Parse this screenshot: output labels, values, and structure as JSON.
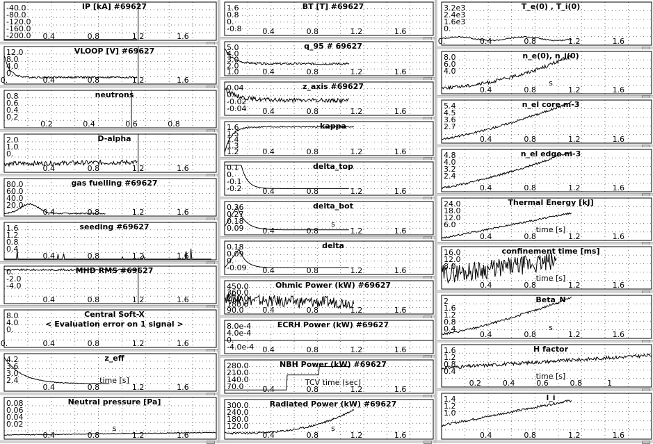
{
  "colors": {
    "line": "#000000",
    "grid": "#707070",
    "frame": "#000000",
    "panel_sep": "#d4d4d4"
  },
  "chart_data": [
    {
      "id": "ip",
      "type": "line",
      "title": "IP [kA] #69627",
      "yticks": [
        "-40.0",
        "-80.0",
        "-120.0",
        "-160.0",
        "-200.0"
      ],
      "xticks": [
        "0.4",
        "0.8",
        "1.2",
        "1.6"
      ],
      "xrange": [
        0,
        1.9
      ],
      "ylim": [
        -210,
        0
      ],
      "trace": "flat",
      "shot_marker": 1.2,
      "annotation": ""
    },
    {
      "id": "vloop",
      "type": "line",
      "title": "VLOOP [V] #69627",
      "yticks": [
        "12.0",
        "8.0",
        "4.0",
        "0."
      ],
      "xticks": [
        "0.",
        "0.4",
        "0.8",
        "1.2",
        "1.6"
      ],
      "xrange": [
        0,
        1.9
      ],
      "ylim": [
        -1,
        13
      ],
      "trace": "decay_spike",
      "shot_marker": 1.2,
      "annotation": ""
    },
    {
      "id": "neutrons",
      "type": "line",
      "title": "neutrons",
      "yticks": [
        "0.8",
        "0.6",
        "0.4",
        "0.2"
      ],
      "xticks": [
        "0.2",
        "0.4",
        "0.6",
        "0.8"
      ],
      "xrange": [
        0,
        1
      ],
      "ylim": [
        0,
        1
      ],
      "trace": "none",
      "shot_marker": 0.6,
      "annotation": ""
    },
    {
      "id": "dalpha",
      "type": "line",
      "title": "D-alpha",
      "yticks": [
        "2.0",
        "1.0",
        "0."
      ],
      "xticks": [
        "0.4",
        "0.8",
        "1.2",
        "1.6"
      ],
      "xrange": [
        0,
        1.9
      ],
      "ylim": [
        0,
        2.6
      ],
      "trace": "noisy_low",
      "shot_marker": 1.2,
      "annotation": ""
    },
    {
      "id": "gas",
      "type": "line",
      "title": "gas fuelling #69627",
      "yticks": [
        "80.0",
        "60.0",
        "40.0",
        "20.0"
      ],
      "xticks": [
        "0.4",
        "0.8",
        "1.2",
        "1.6"
      ],
      "xrange": [
        0,
        1.9
      ],
      "ylim": [
        0,
        90
      ],
      "trace": "early_bump",
      "shot_marker": null,
      "annotation": ""
    },
    {
      "id": "seeding",
      "type": "line",
      "title": "seeding #69627",
      "yticks": [
        "1.6",
        "1.2",
        "0.8",
        "0.4"
      ],
      "xticks": [
        "0.4",
        "0.8",
        "1.2",
        "1.6"
      ],
      "xrange": [
        0,
        1.9
      ],
      "ylim": [
        0,
        2
      ],
      "trace": "spikes",
      "shot_marker": null,
      "annotation": ""
    },
    {
      "id": "mhd",
      "type": "line",
      "title": "MHD RMS #69627",
      "yticks": [
        "0.",
        "-2.0",
        "-4.0"
      ],
      "xticks": [
        "0.4",
        "0.8",
        "1.2",
        "1.6"
      ],
      "xrange": [
        0,
        1.9
      ],
      "ylim": [
        -5,
        0.5
      ],
      "trace": "top_band",
      "shot_marker": 1.2,
      "annotation": ""
    },
    {
      "id": "softx",
      "type": "line",
      "title": "Central Soft-X",
      "yticks": [
        "8.0",
        "4.0",
        "0."
      ],
      "xticks": [
        "0.",
        "0.4",
        "0.8",
        "1.2",
        "1.6"
      ],
      "xrange": [
        0,
        1.9
      ],
      "ylim": [
        0,
        10
      ],
      "trace": "none",
      "shot_marker": null,
      "annotation": "< Evaluation error on 1 signal >"
    },
    {
      "id": "zeff",
      "type": "line",
      "title": "z_eff",
      "yticks": [
        "4.2",
        "3.6",
        "3.0",
        "2.4"
      ],
      "xticks": [
        "0.4",
        "0.8",
        "1.2",
        "1.6"
      ],
      "xrange": [
        0,
        1.9
      ],
      "ylim": [
        2,
        4.6
      ],
      "trace": "decay",
      "shot_marker": null,
      "annotation": "time [s]"
    },
    {
      "id": "npress",
      "type": "line",
      "title": "Neutral pressure [Pa]",
      "yticks": [
        "0.08",
        "0.06",
        "0.04",
        "0.02"
      ],
      "xticks": [
        "0.4",
        "0.8",
        "1.2",
        "1.6"
      ],
      "xrange": [
        0,
        1.9
      ],
      "ylim": [
        0.01,
        0.095
      ],
      "trace": "low_flat",
      "shot_marker": null,
      "annotation": "s"
    },
    {
      "id": "bt",
      "type": "line",
      "title": "BT [T] #69627",
      "yticks": [
        "1.6",
        "0.8",
        "0.",
        "-0.8"
      ],
      "xticks": [
        "0.4",
        "0.8",
        "1.2",
        "1.6"
      ],
      "xrange": [
        0,
        1.9
      ],
      "ylim": [
        -1,
        2
      ],
      "trace": "none",
      "shot_marker": null,
      "annotation": ""
    },
    {
      "id": "q95",
      "type": "line",
      "title": "q_95 # 69627",
      "yticks": [
        "5.0",
        "4.0",
        "3.0",
        "2.0",
        "1.0"
      ],
      "xticks": [
        "0.4",
        "0.8",
        "1.2",
        "1.6"
      ],
      "xrange": [
        0,
        1.9
      ],
      "ylim": [
        0.5,
        6
      ],
      "trace": "q95",
      "shot_marker": null,
      "annotation": ""
    },
    {
      "id": "zaxis",
      "type": "line",
      "title": "z_axis #69627",
      "yticks": [
        "0.04",
        "0.",
        "-0.02",
        "-0.04"
      ],
      "xticks": [
        "0.4",
        "0.8",
        "1.2",
        "1.6"
      ],
      "xrange": [
        0,
        1.9
      ],
      "ylim": [
        -0.05,
        0.05
      ],
      "trace": "zaxis",
      "shot_marker": null,
      "annotation": ""
    },
    {
      "id": "kappa",
      "type": "line",
      "title": "kappa",
      "yticks": [
        "1.6",
        "1.5",
        "1.4",
        "1.3",
        "1.2"
      ],
      "xticks": [
        "0.4",
        "0.8",
        "1.2",
        "1.6"
      ],
      "xrange": [
        0,
        1.9
      ],
      "ylim": [
        1.1,
        1.8
      ],
      "trace": "kappa",
      "shot_marker": null,
      "annotation": ""
    },
    {
      "id": "deltatop",
      "type": "line",
      "title": "delta_top",
      "yticks": [
        "0.1",
        "0.",
        "-0.1",
        "-0.2"
      ],
      "xticks": [
        "0.4",
        "0.8",
        "1.2",
        "1.6"
      ],
      "xrange": [
        0,
        1.9
      ],
      "ylim": [
        -0.3,
        0.2
      ],
      "trace": "dtop",
      "shot_marker": null,
      "annotation": ""
    },
    {
      "id": "deltabot",
      "type": "line",
      "title": "delta_bot",
      "yticks": [
        "0.36",
        "0.27",
        "0.18",
        "0.09"
      ],
      "xticks": [
        "0.4",
        "0.8",
        "1.2",
        "1.6"
      ],
      "xrange": [
        0,
        1.9
      ],
      "ylim": [
        0,
        0.42
      ],
      "trace": "dbot",
      "shot_marker": null,
      "annotation": "s"
    },
    {
      "id": "delta",
      "type": "line",
      "title": "delta",
      "yticks": [
        "0.18",
        "0.09",
        "0.",
        "-0.09"
      ],
      "xticks": [
        "0.4",
        "0.8",
        "1.2",
        "1.6"
      ],
      "xrange": [
        0,
        1.9
      ],
      "ylim": [
        -0.15,
        0.25
      ],
      "trace": "delta",
      "shot_marker": null,
      "annotation": ""
    },
    {
      "id": "ohmic",
      "type": "line",
      "title": "Ohmic Power (kW) #69627",
      "yticks": [
        "450.0",
        "360.0",
        "270.0",
        "180.0",
        "90.0"
      ],
      "xticks": [
        "0.4",
        "0.8",
        "1.2",
        "1.6"
      ],
      "xrange": [
        0,
        1.9
      ],
      "ylim": [
        0,
        480
      ],
      "trace": "noisy_mid",
      "shot_marker": null,
      "annotation": ""
    },
    {
      "id": "ecrh",
      "type": "line",
      "title": "ECRH Power (kW) #69627",
      "yticks": [
        "8.0e-4",
        "4.0e-4",
        "0.",
        "-4.0e-4"
      ],
      "xticks": [
        "0.4",
        "0.8",
        "1.2",
        "1.6"
      ],
      "xrange": [
        0,
        1.9
      ],
      "ylim": [
        -0.0006,
        0.0009
      ],
      "trace": "zero",
      "shot_marker": null,
      "annotation": ""
    },
    {
      "id": "nbh",
      "type": "line",
      "title": "NBH Power (kW) #69627",
      "yticks": [
        "280.0",
        "210.0",
        "140.0",
        "70.0"
      ],
      "xticks": [
        "0.4",
        "0.8",
        "1.2",
        "1.6"
      ],
      "xrange": [
        0,
        1.9
      ],
      "ylim": [
        0,
        320
      ],
      "trace": "nbh",
      "shot_marker": null,
      "annotation": "TCV time (sec)"
    },
    {
      "id": "rad",
      "type": "line",
      "title": "Radiated Power (kW) #69627",
      "yticks": [
        "300.0",
        "240.0",
        "180.0",
        "120.0"
      ],
      "xticks": [
        "0.4",
        "0.8",
        "1.2",
        "1.6"
      ],
      "xrange": [
        0,
        1.9
      ],
      "ylim": [
        100,
        340
      ],
      "trace": "rad",
      "shot_marker": null,
      "annotation": "s"
    },
    {
      "id": "te",
      "type": "line",
      "title": "T_e(0) , T_i(0)",
      "yticks": [
        "3.2e3",
        "2.4e3",
        "1.6e3",
        "0."
      ],
      "xticks": [
        "0.",
        "0.4",
        "0.8",
        "1.2",
        "1.6"
      ],
      "xrange": [
        0,
        1.9
      ],
      "ylim": [
        -200,
        3600
      ],
      "trace": "te",
      "shot_marker": null,
      "annotation": ""
    },
    {
      "id": "ne0",
      "type": "line",
      "title": "n_e(0), n_i(0)",
      "yticks": [
        "8.0",
        "6.0",
        "4.0"
      ],
      "xticks": [
        "0.4",
        "0.8",
        "1.2",
        "1.6"
      ],
      "xrange": [
        0,
        1.9
      ],
      "ylim": [
        2.5,
        9.5
      ],
      "trace": "ne0",
      "shot_marker": null,
      "annotation": "s"
    },
    {
      "id": "necore",
      "type": "line",
      "title": "n_el core m-3",
      "yticks": [
        "5.4",
        "4.5",
        "3.6",
        "2.7"
      ],
      "xticks": [
        "0.4",
        "0.8",
        "1.2",
        "1.6"
      ],
      "xrange": [
        0,
        1.9
      ],
      "ylim": [
        1.8,
        6
      ],
      "trace": "rise",
      "shot_marker": null,
      "annotation": ""
    },
    {
      "id": "needge",
      "type": "line",
      "title": "n_el edge m-3",
      "yticks": [
        "4.8",
        "4.0",
        "3.2",
        "2.4"
      ],
      "xticks": [
        "0.4",
        "0.8",
        "1.2",
        "1.6"
      ],
      "xrange": [
        0,
        1.9
      ],
      "ylim": [
        1.8,
        5.4
      ],
      "trace": "rise",
      "shot_marker": null,
      "annotation": ""
    },
    {
      "id": "wth",
      "type": "line",
      "title": "Thermal Energy [kJ]",
      "yticks": [
        "24.0",
        "18.0",
        "12.0",
        "6.0"
      ],
      "xticks": [
        "0.4",
        "0.8",
        "1.2",
        "1.6"
      ],
      "xrange": [
        0,
        1.9
      ],
      "ylim": [
        3,
        27
      ],
      "trace": "rise_soft",
      "shot_marker": null,
      "annotation": "time [s]"
    },
    {
      "id": "tau",
      "type": "line",
      "title": "confinement time [ms]",
      "yticks": [
        "16.0",
        "12.0",
        "8.0"
      ],
      "xticks": [
        "0.4",
        "0.8",
        "1.2",
        "1.6"
      ],
      "xrange": [
        0,
        1.9
      ],
      "ylim": [
        6,
        18
      ],
      "trace": "tau",
      "shot_marker": null,
      "annotation": "time [s]"
    },
    {
      "id": "betan",
      "type": "line",
      "title": "Beta_N",
      "yticks": [
        "2",
        "1.6",
        "1.2",
        "0.8",
        "0.4"
      ],
      "xticks": [
        "0.4",
        "0.8",
        "1.2",
        "1.6"
      ],
      "xrange": [
        0,
        1.9
      ],
      "ylim": [
        0.3,
        2.1
      ],
      "trace": "rise",
      "shot_marker": null,
      "annotation": "s"
    },
    {
      "id": "hfac",
      "type": "line",
      "title": "H factor",
      "yticks": [
        "1.6",
        "1.2",
        "0.8",
        "0.4"
      ],
      "xticks": [
        "0.2",
        "0.4",
        "0.6",
        "0.8",
        "1"
      ],
      "xrange": [
        0,
        1.25
      ],
      "ylim": [
        0.3,
        1.8
      ],
      "trace": "hfac",
      "shot_marker": null,
      "annotation": "time [s]"
    },
    {
      "id": "li",
      "type": "line",
      "title": "l_i",
      "yticks": [
        "1.4",
        "1.2",
        "1.0"
      ],
      "xticks": [
        "0.4",
        "0.8",
        "1.2",
        "1.6"
      ],
      "xrange": [
        0,
        1.9
      ],
      "ylim": [
        0.8,
        1.55
      ],
      "trace": "li",
      "shot_marker": null,
      "annotation": ""
    }
  ]
}
